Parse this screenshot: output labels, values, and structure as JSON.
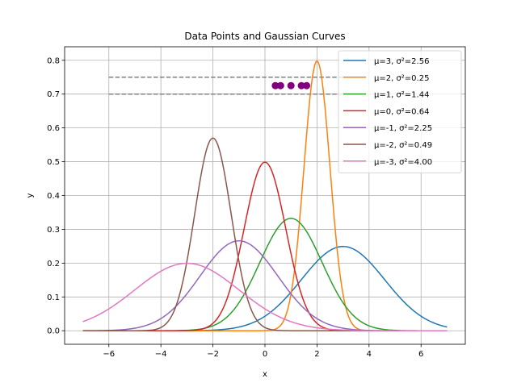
{
  "chart_data": {
    "type": "line",
    "title": "Data Points and Gaussian Curves",
    "xlabel": "x",
    "ylabel": "y",
    "xlim": [
      -7.7,
      7.7
    ],
    "ylim": [
      -0.04,
      0.84
    ],
    "xticks": [
      -6,
      -4,
      -2,
      0,
      2,
      4,
      6
    ],
    "xtick_labels": [
      "−6",
      "−4",
      "−2",
      "0",
      "2",
      "4",
      "6"
    ],
    "yticks": [
      0.0,
      0.1,
      0.2,
      0.3,
      0.4,
      0.5,
      0.6,
      0.7,
      0.8
    ],
    "ytick_labels": [
      "0.0",
      "0.1",
      "0.2",
      "0.3",
      "0.4",
      "0.5",
      "0.6",
      "0.7",
      "0.8"
    ],
    "grid": true,
    "legend_position": "top-right",
    "x_range": [
      -7,
      7
    ],
    "series": [
      {
        "name": "μ=3, σ²=2.56",
        "mu": 3,
        "var": 2.56,
        "color": "#1f77b4"
      },
      {
        "name": "μ=2, σ²=0.25",
        "mu": 2,
        "var": 0.25,
        "color": "#ff7f0e"
      },
      {
        "name": "μ=1, σ²=1.44",
        "mu": 1,
        "var": 1.44,
        "color": "#2ca02c"
      },
      {
        "name": "μ=0, σ²=0.64",
        "mu": 0,
        "var": 0.64,
        "color": "#d62728"
      },
      {
        "name": "μ=-1, σ²=2.25",
        "mu": -1,
        "var": 2.25,
        "color": "#9467bd"
      },
      {
        "name": "μ=-2, σ²=0.49",
        "mu": -2,
        "var": 0.49,
        "color": "#8c564b"
      },
      {
        "name": "μ=-3, σ²=4.00",
        "mu": -3,
        "var": 4.0,
        "color": "#e377c2"
      }
    ],
    "hlines": [
      {
        "y": 0.75,
        "xmin": -6,
        "xmax": 3,
        "color": "#808080"
      },
      {
        "y": 0.7,
        "xmin": -6,
        "xmax": 3,
        "color": "#808080"
      }
    ],
    "points": {
      "color": "#800080",
      "data": [
        [
          0.4,
          0.725
        ],
        [
          0.6,
          0.725
        ],
        [
          1.0,
          0.725
        ],
        [
          1.4,
          0.725
        ],
        [
          1.6,
          0.725
        ]
      ]
    }
  }
}
